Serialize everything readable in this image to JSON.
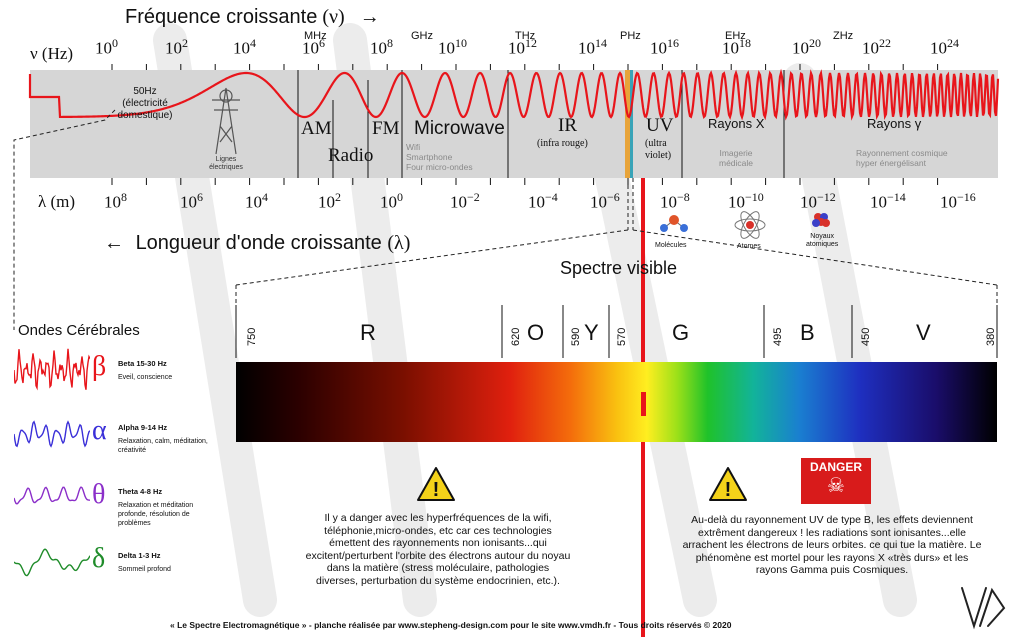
{
  "top": {
    "title": "Fréquence croissante",
    "title_symbol": "(ν)",
    "title_arrow": "→",
    "axis_label": "ν (Hz)",
    "exponents": [
      {
        "base": "10",
        "exp": "0"
      },
      {
        "base": "10",
        "exp": "2"
      },
      {
        "base": "10",
        "exp": "4"
      },
      {
        "base": "10",
        "exp": "6"
      },
      {
        "base": "10",
        "exp": "8"
      },
      {
        "base": "10",
        "exp": "10"
      },
      {
        "base": "10",
        "exp": "12"
      },
      {
        "base": "10",
        "exp": "14"
      },
      {
        "base": "10",
        "exp": "16"
      },
      {
        "base": "10",
        "exp": "18"
      },
      {
        "base": "10",
        "exp": "20"
      },
      {
        "base": "10",
        "exp": "22"
      },
      {
        "base": "10",
        "exp": "24"
      }
    ],
    "units": [
      "MHz",
      "GHz",
      "THz",
      "PHz",
      "EHz",
      "ZHz"
    ]
  },
  "bottom_axis": {
    "axis_label": "λ (m)",
    "exponents": [
      {
        "base": "10",
        "exp": "8"
      },
      {
        "base": "10",
        "exp": "6"
      },
      {
        "base": "10",
        "exp": "4"
      },
      {
        "base": "10",
        "exp": "2"
      },
      {
        "base": "10",
        "exp": "0"
      },
      {
        "base": "10",
        "exp": "−2"
      },
      {
        "base": "10",
        "exp": "−4"
      },
      {
        "base": "10",
        "exp": "−6"
      },
      {
        "base": "10",
        "exp": "−8"
      },
      {
        "base": "10",
        "exp": "−10"
      },
      {
        "base": "10",
        "exp": "−12"
      },
      {
        "base": "10",
        "exp": "−14"
      },
      {
        "base": "10",
        "exp": "−16"
      }
    ],
    "title": "Longueur d'onde croissante",
    "title_symbol": "(λ)",
    "title_arrow": "←"
  },
  "bands": {
    "hz50": "50Hz",
    "elec": "(électricité",
    "elec2": "domestique)",
    "lignes": "Lignes",
    "lignes2": "électriques",
    "am": "AM",
    "radio": "Radio",
    "fm": "FM",
    "microwave": "Microwave",
    "wifi": "Wifi",
    "smartphone": "Smartphone",
    "four": "Four micro-ondes",
    "ir": "IR",
    "ir_sub": "(infra rouge)",
    "uv": "UV",
    "uv_sub1": "(ultra",
    "uv_sub2": "violet)",
    "x": "Rayons X",
    "x_sub1": "Imagerie",
    "x_sub2": "médicale",
    "gamma": "Rayons γ",
    "gamma_sub1": "Rayonnement cosmique",
    "gamma_sub2": "hyper énergélisant"
  },
  "particles": {
    "molecules": "Molécules",
    "atomes": "Atomes",
    "noyaux1": "Noyaux",
    "noyaux2": "atomiques"
  },
  "visible": {
    "title": "Spectre visible",
    "numbers": [
      "750",
      "620",
      "590",
      "570",
      "495",
      "450",
      "380"
    ],
    "letters": [
      "R",
      "O",
      "Y",
      "G",
      "B",
      "V"
    ]
  },
  "waves": {
    "title": "Ondes Cérébrales",
    "items": [
      {
        "symbol": "β",
        "name": "Beta 15-30 Hz",
        "desc": "Eveil, conscience",
        "color": "#e8151b"
      },
      {
        "symbol": "α",
        "name": "Alpha 9-14 Hz",
        "desc": "Relaxation, calm, méditation, créativité",
        "color": "#3a2fd8"
      },
      {
        "symbol": "θ",
        "name": "Theta 4-8 Hz",
        "desc": "Relaxation et méditation profonde, résolution de problèmes",
        "color": "#8b2fc9"
      },
      {
        "symbol": "δ",
        "name": "Delta 1-3 Hz",
        "desc": "Sommeil profond",
        "color": "#1f8c2a"
      }
    ]
  },
  "warnings": {
    "left_text": "Il y a danger avec les hyperfréquences de la wifi, téléphonie,micro-ondes, etc car ces technologies émettent des rayonnements non ionisants...qui excitent/perturbent l'orbite des électrons autour du noyau dans la matière (stress moléculaire, pathologies diverses, perturbation du système endocrinien, etc.).",
    "right_text": "Au-delà du rayonnement UV de type B, les effets deviennent extrêment dangereux ! les radiations sont ionisantes...elle arrachent les électrons de leurs orbites. ce qui tue la matière. Le phénomène est mortel pour les rayons X «très durs» et les rayons Gamma puis Cosmiques.",
    "danger_label": "DANGER"
  },
  "footer": "« Le Spectre Electromagnétique » - planche réalisée par www.stepheng-design.com pour le site www.vmdh.fr - Tous droits réservés © 2020",
  "colors": {
    "accent_red": "#e8151b",
    "band_grey": "#d6d6d6"
  }
}
